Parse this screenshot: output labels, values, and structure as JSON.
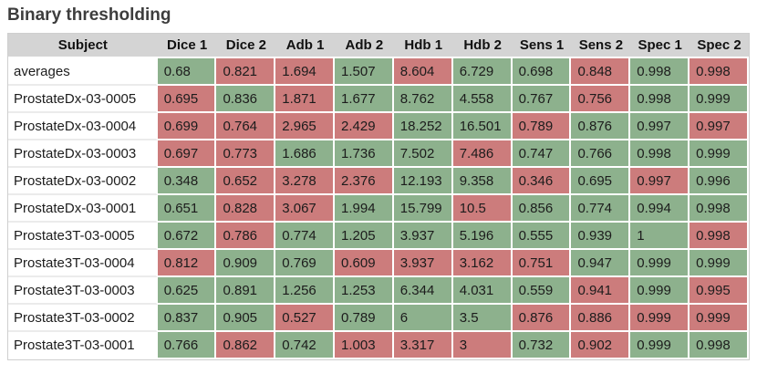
{
  "title": "Binary thresholding",
  "colors": {
    "good_cell": "#8db18d",
    "bad_cell": "#cc7c7c",
    "header_bg": "#d4d4d4",
    "title_text": "#3d3d3d"
  },
  "chart_data": {
    "type": "table",
    "title": "Binary thresholding",
    "columns": [
      "Subject",
      "Dice 1",
      "Dice 2",
      "Adb 1",
      "Adb 2",
      "Hdb 1",
      "Hdb 2",
      "Sens 1",
      "Sens 2",
      "Spec 1",
      "Spec 2"
    ],
    "color_legend": {
      "g": "green cell",
      "r": "red cell"
    },
    "rows": [
      {
        "subject": "averages",
        "values": [
          0.68,
          0.821,
          1.694,
          1.507,
          8.604,
          6.729,
          0.698,
          0.848,
          0.998,
          0.998
        ],
        "colors": [
          "g",
          "r",
          "r",
          "g",
          "r",
          "g",
          "g",
          "r",
          "g",
          "r"
        ]
      },
      {
        "subject": "ProstateDx-03-0005",
        "values": [
          0.695,
          0.836,
          1.871,
          1.677,
          8.762,
          4.558,
          0.767,
          0.756,
          0.998,
          0.999
        ],
        "colors": [
          "r",
          "g",
          "r",
          "g",
          "g",
          "g",
          "g",
          "r",
          "g",
          "g"
        ]
      },
      {
        "subject": "ProstateDx-03-0004",
        "values": [
          0.699,
          0.764,
          2.965,
          2.429,
          18.252,
          16.501,
          0.789,
          0.876,
          0.997,
          0.997
        ],
        "colors": [
          "r",
          "r",
          "r",
          "r",
          "g",
          "g",
          "r",
          "g",
          "g",
          "r"
        ]
      },
      {
        "subject": "ProstateDx-03-0003",
        "values": [
          0.697,
          0.773,
          1.686,
          1.736,
          7.502,
          7.486,
          0.747,
          0.766,
          0.998,
          0.999
        ],
        "colors": [
          "r",
          "r",
          "g",
          "g",
          "g",
          "r",
          "g",
          "g",
          "g",
          "g"
        ]
      },
      {
        "subject": "ProstateDx-03-0002",
        "values": [
          0.348,
          0.652,
          3.278,
          2.376,
          12.193,
          9.358,
          0.346,
          0.695,
          0.997,
          0.996
        ],
        "colors": [
          "g",
          "r",
          "r",
          "r",
          "g",
          "g",
          "r",
          "g",
          "r",
          "g"
        ]
      },
      {
        "subject": "ProstateDx-03-0001",
        "values": [
          0.651,
          0.828,
          3.067,
          1.994,
          15.799,
          10.5,
          0.856,
          0.774,
          0.994,
          0.998
        ],
        "colors": [
          "g",
          "r",
          "r",
          "g",
          "g",
          "r",
          "g",
          "g",
          "g",
          "g"
        ]
      },
      {
        "subject": "Prostate3T-03-0005",
        "values": [
          0.672,
          0.786,
          0.774,
          1.205,
          3.937,
          5.196,
          0.555,
          0.939,
          1,
          0.998
        ],
        "colors": [
          "g",
          "r",
          "g",
          "g",
          "g",
          "g",
          "g",
          "g",
          "g",
          "r"
        ]
      },
      {
        "subject": "Prostate3T-03-0004",
        "values": [
          0.812,
          0.909,
          0.769,
          0.609,
          3.937,
          3.162,
          0.751,
          0.947,
          0.999,
          0.999
        ],
        "colors": [
          "r",
          "g",
          "g",
          "r",
          "r",
          "r",
          "r",
          "g",
          "g",
          "g"
        ]
      },
      {
        "subject": "Prostate3T-03-0003",
        "values": [
          0.625,
          0.891,
          1.256,
          1.253,
          6.344,
          4.031,
          0.559,
          0.941,
          0.999,
          0.995
        ],
        "colors": [
          "g",
          "g",
          "g",
          "g",
          "g",
          "g",
          "g",
          "r",
          "g",
          "r"
        ]
      },
      {
        "subject": "Prostate3T-03-0002",
        "values": [
          0.837,
          0.905,
          0.527,
          0.789,
          6,
          3.5,
          0.876,
          0.886,
          0.999,
          0.999
        ],
        "colors": [
          "g",
          "g",
          "r",
          "g",
          "g",
          "g",
          "r",
          "r",
          "r",
          "r"
        ]
      },
      {
        "subject": "Prostate3T-03-0001",
        "values": [
          0.766,
          0.862,
          0.742,
          1.003,
          3.317,
          3,
          0.732,
          0.902,
          0.999,
          0.998
        ],
        "colors": [
          "g",
          "r",
          "g",
          "r",
          "r",
          "r",
          "g",
          "r",
          "g",
          "g"
        ]
      }
    ]
  }
}
